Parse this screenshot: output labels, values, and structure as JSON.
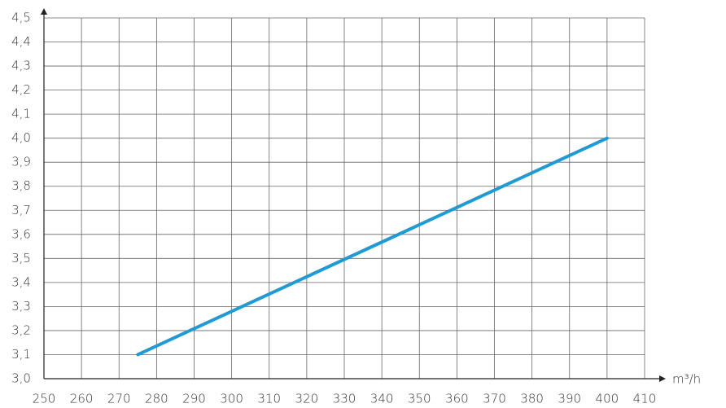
{
  "chart_data": {
    "type": "line",
    "x_label": "m³/h",
    "x": [
      275,
      400
    ],
    "series": [
      {
        "color": "#1e9ad6",
        "values": [
          3.1,
          4.0
        ]
      }
    ],
    "xlim": [
      250,
      410
    ],
    "xticks": [
      250,
      260,
      270,
      280,
      290,
      300,
      310,
      320,
      330,
      340,
      350,
      360,
      370,
      380,
      390,
      400,
      410
    ],
    "ylim": [
      3.0,
      4.5
    ],
    "yticks": [
      {
        "value": 3.0,
        "label": "3,0"
      },
      {
        "value": 3.1,
        "label": "3,1"
      },
      {
        "value": 3.2,
        "label": "3,2"
      },
      {
        "value": 3.3,
        "label": "3,3"
      },
      {
        "value": 3.4,
        "label": "3,4"
      },
      {
        "value": 3.5,
        "label": "3,5"
      },
      {
        "value": 3.6,
        "label": "3,6"
      },
      {
        "value": 3.7,
        "label": "3,7"
      },
      {
        "value": 3.8,
        "label": "3,8"
      },
      {
        "value": 3.9,
        "label": "3,9"
      },
      {
        "value": 4.0,
        "label": "4,0"
      },
      {
        "value": 4.1,
        "label": "4,1"
      },
      {
        "value": 4.2,
        "label": "4,2"
      },
      {
        "value": 4.3,
        "label": "4,3"
      },
      {
        "value": 4.4,
        "label": "4,4"
      },
      {
        "value": 4.5,
        "label": "4,5"
      }
    ],
    "grid": true
  }
}
